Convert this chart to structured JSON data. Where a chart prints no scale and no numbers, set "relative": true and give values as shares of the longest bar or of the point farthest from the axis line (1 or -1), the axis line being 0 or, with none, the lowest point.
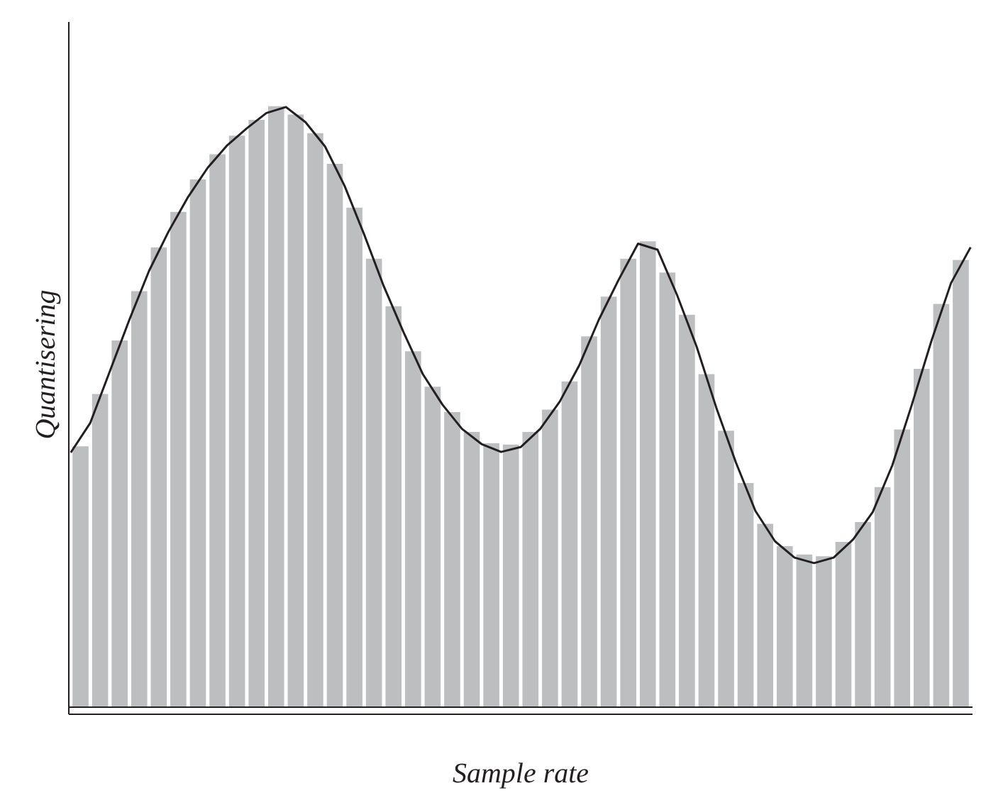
{
  "chart_data": [
    {
      "type": "bar",
      "relative": true,
      "xlabel": "Sample rate",
      "ylabel": "Quantisering",
      "color": "#bcbec0",
      "categories": [
        null,
        null,
        null,
        null,
        null,
        null,
        null,
        null,
        null,
        null,
        null,
        null,
        null,
        null,
        null,
        null,
        null,
        null,
        null,
        null,
        null,
        null,
        null,
        null,
        null,
        null,
        null,
        null,
        null,
        null,
        null,
        null,
        null,
        null,
        null,
        null,
        null,
        null,
        null,
        null,
        null,
        null,
        null,
        null,
        null,
        null
      ],
      "values": [
        0.434,
        0.521,
        0.61,
        0.692,
        0.765,
        0.824,
        0.878,
        0.92,
        0.951,
        0.977,
        1.0,
        0.986,
        0.955,
        0.904,
        0.831,
        0.746,
        0.667,
        0.592,
        0.533,
        0.491,
        0.458,
        0.439,
        0.437,
        0.458,
        0.495,
        0.542,
        0.617,
        0.683,
        0.746,
        0.775,
        0.723,
        0.653,
        0.554,
        0.46,
        0.373,
        0.305,
        0.268,
        0.254,
        0.251,
        0.275,
        0.308,
        0.366,
        0.462,
        0.563,
        0.671,
        0.744
      ]
    },
    {
      "type": "line",
      "relative": true,
      "color": "#231f20",
      "categories": [
        null,
        null,
        null,
        null,
        null,
        null,
        null,
        null,
        null,
        null,
        null,
        null,
        null,
        null,
        null,
        null,
        null,
        null,
        null,
        null,
        null,
        null,
        null,
        null,
        null,
        null,
        null,
        null,
        null,
        null,
        null,
        null,
        null,
        null,
        null,
        null,
        null,
        null,
        null,
        null,
        null,
        null,
        null,
        null,
        null,
        null,
        null
      ],
      "values": [
        0.431,
        0.48,
        0.565,
        0.65,
        0.73,
        0.795,
        0.852,
        0.9,
        0.937,
        0.965,
        0.99,
        1.0,
        0.975,
        0.935,
        0.87,
        0.79,
        0.705,
        0.63,
        0.56,
        0.51,
        0.47,
        0.445,
        0.432,
        0.44,
        0.47,
        0.515,
        0.575,
        0.65,
        0.715,
        0.775,
        0.765,
        0.69,
        0.605,
        0.505,
        0.415,
        0.335,
        0.285,
        0.258,
        0.249,
        0.258,
        0.288,
        0.333,
        0.41,
        0.51,
        0.615,
        0.71,
        0.769
      ]
    }
  ]
}
